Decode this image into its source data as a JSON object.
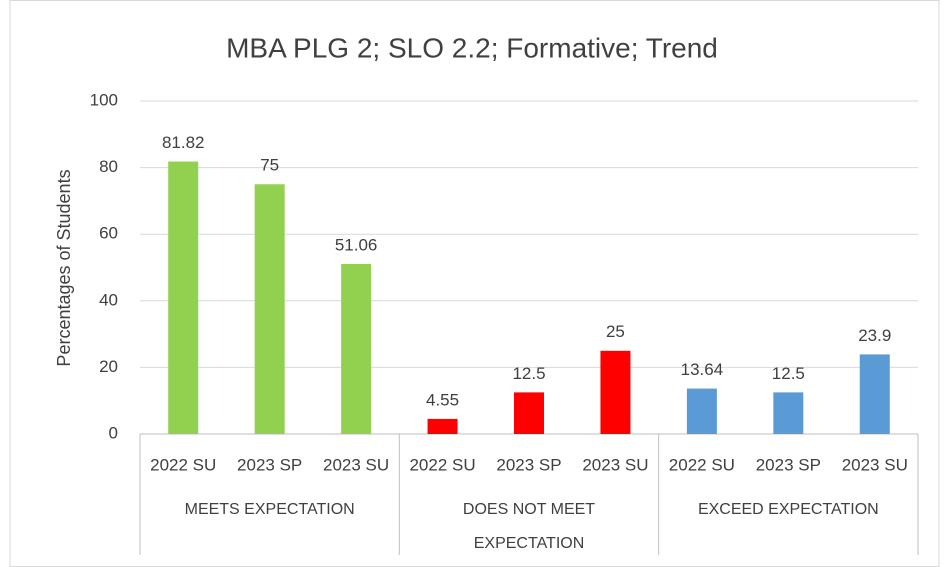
{
  "chart_data": {
    "type": "bar",
    "title": "MBA PLG 2; SLO 2.2; Formative; Trend",
    "y_label": "Percentages of Students",
    "groups": [
      {
        "name": "MEETS EXPECTATION",
        "color": "#92d050",
        "categories": [
          "2022 SU",
          "2023 SP",
          "2023 SU"
        ],
        "values": [
          81.82,
          75,
          51.06
        ]
      },
      {
        "name": "DOES NOT MEET EXPECTATION",
        "color": "#ff0000",
        "categories": [
          "2022 SU",
          "2023 SP",
          "2023 SU"
        ],
        "values": [
          4.55,
          12.5,
          25
        ]
      },
      {
        "name": "EXCEED EXPECTATION",
        "color": "#5b9bd5",
        "categories": [
          "2022 SU",
          "2023 SP",
          "2023 SU"
        ],
        "values": [
          13.64,
          12.5,
          23.9
        ]
      }
    ],
    "ylim": [
      0,
      100
    ],
    "yticks": [
      0,
      20,
      40,
      60,
      80,
      100
    ],
    "grid": true
  }
}
